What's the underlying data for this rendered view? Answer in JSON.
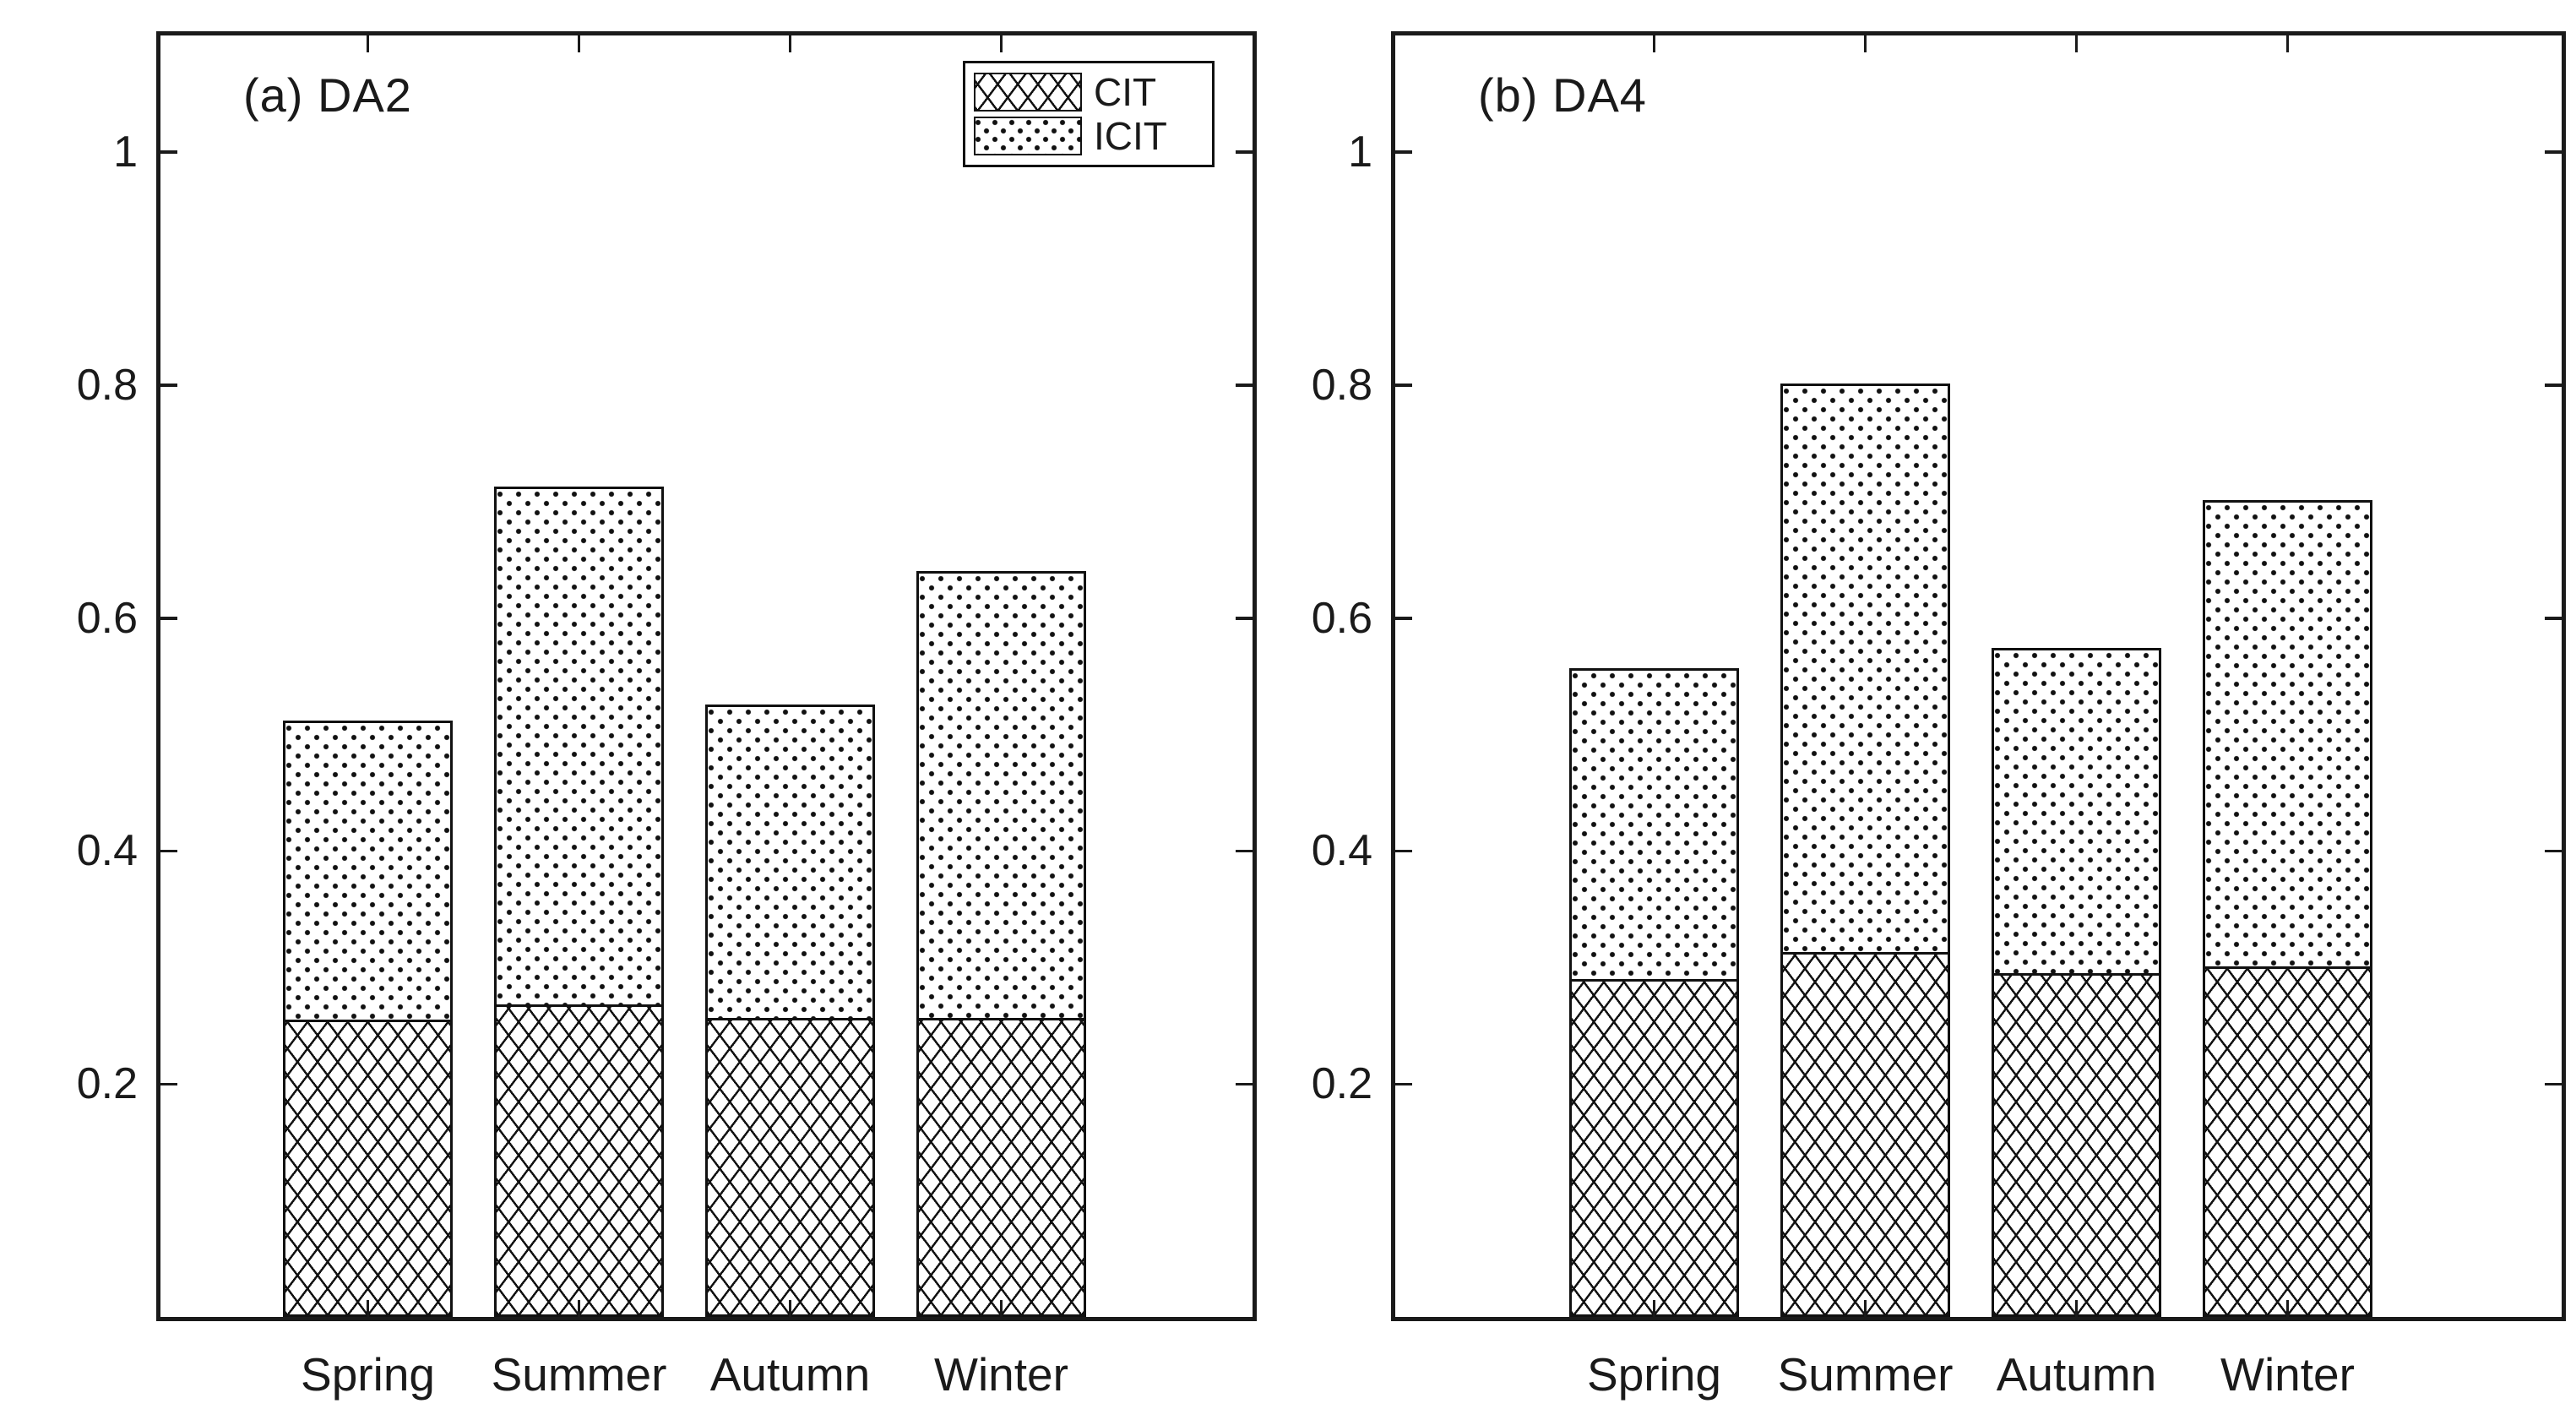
{
  "figure": {
    "background_color": "#ffffff",
    "ink_color": "#1a1a1a"
  },
  "legend": {
    "entries": [
      {
        "label": "CIT",
        "pattern": "crosshatch"
      },
      {
        "label": "ICIT",
        "pattern": "dots"
      }
    ],
    "position": "top-right of panel (a)"
  },
  "chart_data": [
    {
      "type": "bar",
      "stacked": true,
      "panel_label": "(a) DA2",
      "categories": [
        "Spring",
        "Summer",
        "Autumn",
        "Winter"
      ],
      "series": [
        {
          "name": "CIT",
          "pattern": "crosshatch",
          "values": [
            0.255,
            0.268,
            0.257,
            0.257
          ]
        },
        {
          "name": "ICIT",
          "pattern": "dots",
          "values": [
            0.257,
            0.445,
            0.269,
            0.383
          ]
        }
      ],
      "stack_totals": [
        0.512,
        0.713,
        0.526,
        0.64
      ],
      "xlabel": "",
      "ylabel": "",
      "ylim": [
        0,
        1.1
      ],
      "yticks": [
        0.2,
        0.4,
        0.6,
        0.8,
        1
      ],
      "ytick_labels": [
        "0.2",
        "0.4",
        "0.6",
        "0.8",
        "1"
      ],
      "grid": false,
      "legend_position": "upper right inside axes",
      "tick_style": "inward ticks mirrored on all four sides"
    },
    {
      "type": "bar",
      "stacked": true,
      "panel_label": "(b) DA4",
      "categories": [
        "Spring",
        "Summer",
        "Autumn",
        "Winter"
      ],
      "series": [
        {
          "name": "CIT",
          "pattern": "crosshatch",
          "values": [
            0.29,
            0.313,
            0.295,
            0.301
          ]
        },
        {
          "name": "ICIT",
          "pattern": "dots",
          "values": [
            0.267,
            0.488,
            0.279,
            0.4
          ]
        }
      ],
      "stack_totals": [
        0.557,
        0.801,
        0.574,
        0.701
      ],
      "xlabel": "",
      "ylabel": "",
      "ylim": [
        0,
        1.1
      ],
      "yticks": [
        0.2,
        0.4,
        0.6,
        0.8,
        1
      ],
      "ytick_labels": [
        "0.2",
        "0.4",
        "0.6",
        "0.8",
        "1"
      ],
      "grid": false,
      "legend_position": "none",
      "tick_style": "inward ticks mirrored on all four sides"
    }
  ]
}
